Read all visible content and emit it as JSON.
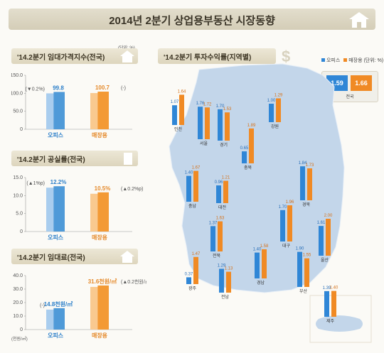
{
  "header": {
    "title": "2014년 2분기 상업용부동산 시장동향"
  },
  "left_unit": "(단위: %)",
  "rent_index": {
    "title": "'14.2분기 임대가격지수(전국)",
    "chart_data": {
      "type": "bar",
      "categories": [
        "오피스",
        "매장용"
      ],
      "values": [
        99.8,
        100.7
      ],
      "annotations": [
        "(▼0.2%)",
        "(-)"
      ],
      "value_labels": [
        "99.8",
        "100.7"
      ],
      "ylim": [
        0,
        150
      ],
      "yticks": [
        "0",
        "50.0",
        "100.0",
        "150.0"
      ]
    }
  },
  "vacancy": {
    "title": "'14.2분기 공실률(전국)",
    "chart_data": {
      "type": "bar",
      "categories": [
        "오피스",
        "매장용"
      ],
      "values": [
        12.2,
        10.5
      ],
      "annotations": [
        "(▲1%p)",
        "(▲0.2%p)"
      ],
      "value_labels": [
        "12.2%",
        "10.5%"
      ],
      "ylim": [
        0,
        15
      ],
      "yticks": [
        "0",
        "5.0",
        "10.0",
        "15.0"
      ]
    }
  },
  "rent": {
    "title": "'14.2분기 임대료(전국)",
    "unit": "(천원/㎡)",
    "chart_data": {
      "type": "bar",
      "categories": [
        "오피스",
        "매장용"
      ],
      "values": [
        14.8,
        31.6
      ],
      "annotations": [
        "(-)",
        "(▲0.2천원/㎡)"
      ],
      "value_labels": [
        "14.8천원/㎡",
        "31.6천원/㎡"
      ],
      "ylim": [
        0,
        40
      ],
      "yticks": [
        "0",
        "10.0",
        "20.0",
        "30.0",
        "40.0"
      ]
    }
  },
  "returns": {
    "title": "'14.2분기 투자수익률(지역별)",
    "legend": {
      "office": "오피스",
      "retail": "매장용",
      "unit": "(단위: %)"
    },
    "national": {
      "label": "전국",
      "office": "1.59",
      "retail": "1.66"
    },
    "colors": {
      "office": "#2f86d6",
      "retail": "#f08a24"
    },
    "chart_data": {
      "type": "bar",
      "series": [
        {
          "name": "오피스"
        },
        {
          "name": "매장용"
        }
      ],
      "regions": [
        {
          "name": "인천",
          "office": 1.07,
          "retail": 1.64
        },
        {
          "name": "서울",
          "office": 1.76,
          "retail": 1.72
        },
        {
          "name": "경기",
          "office": 1.7,
          "retail": 1.53
        },
        {
          "name": "강원",
          "office": 1.0,
          "retail": 1.29
        },
        {
          "name": "충북",
          "office": 0.65,
          "retail": 1.89
        },
        {
          "name": "충남",
          "office": 1.4,
          "retail": 1.67
        },
        {
          "name": "대전",
          "office": 0.96,
          "retail": 1.21
        },
        {
          "name": "경북",
          "office": 1.84,
          "retail": 1.73
        },
        {
          "name": "전북",
          "office": 1.37,
          "retail": 1.63
        },
        {
          "name": "대구",
          "office": 1.7,
          "retail": 1.96
        },
        {
          "name": "울산",
          "office": 1.61,
          "retail": 2.0
        },
        {
          "name": "광주",
          "office": 0.37,
          "retail": 1.47
        },
        {
          "name": "경남",
          "office": 1.4,
          "retail": 1.58
        },
        {
          "name": "전남",
          "office": 1.29,
          "retail": 1.13
        },
        {
          "name": "부산",
          "office": 1.9,
          "retail": 1.55
        },
        {
          "name": "제주",
          "office": 1.39,
          "retail": 1.4
        }
      ]
    }
  }
}
